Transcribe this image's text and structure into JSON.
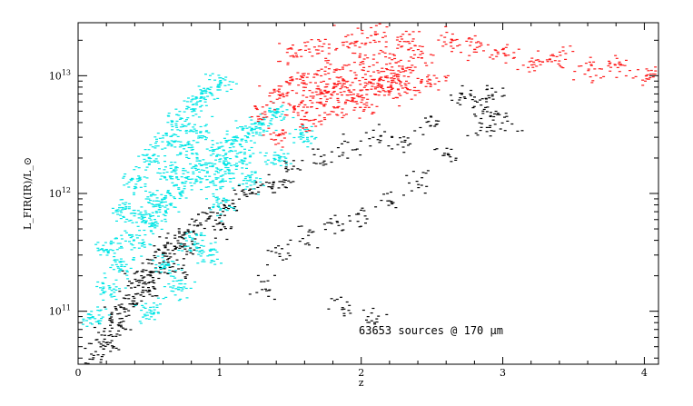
{
  "chart_data": {
    "type": "scatter",
    "xlabel": "z",
    "ylabel": "L_FIR(IR)/L_⊙",
    "xlim": [
      0,
      4.1
    ],
    "ylim_log10": [
      10.55,
      13.45
    ],
    "y_scale": "log",
    "x_ticks": [
      {
        "value": 0,
        "label": "0"
      },
      {
        "value": 1,
        "label": "1"
      },
      {
        "value": 2,
        "label": "2"
      },
      {
        "value": 3,
        "label": "3"
      },
      {
        "value": 4,
        "label": "4"
      }
    ],
    "y_ticks": [
      {
        "log10": 11,
        "base": "10",
        "exp": "11"
      },
      {
        "log10": 12,
        "base": "10",
        "exp": "12"
      },
      {
        "log10": 13,
        "base": "10",
        "exp": "13"
      }
    ],
    "annotation": "63653 sources @ 170 μm",
    "grid": false,
    "legend": "none",
    "series": [
      {
        "color": "#000000",
        "description": "black points: dense band along lower-left, scattered to high z",
        "points": [
          [
            0.1,
            10.6
          ],
          [
            0.15,
            10.75
          ],
          [
            0.2,
            10.85
          ],
          [
            0.25,
            10.95
          ],
          [
            0.3,
            11.0
          ],
          [
            0.35,
            11.1
          ],
          [
            0.4,
            11.15
          ],
          [
            0.45,
            11.25
          ],
          [
            0.5,
            11.3
          ],
          [
            0.55,
            11.4
          ],
          [
            0.6,
            11.45
          ],
          [
            0.65,
            11.55
          ],
          [
            0.7,
            11.6
          ],
          [
            0.75,
            11.65
          ],
          [
            0.8,
            11.7
          ],
          [
            0.9,
            11.8
          ],
          [
            1.0,
            11.85
          ],
          [
            1.1,
            11.95
          ],
          [
            1.2,
            12.0
          ],
          [
            1.3,
            12.05
          ],
          [
            1.4,
            12.1
          ],
          [
            1.5,
            12.2
          ],
          [
            1.7,
            12.3
          ],
          [
            1.9,
            12.4
          ],
          [
            2.1,
            12.5
          ],
          [
            2.3,
            12.45
          ],
          [
            2.5,
            12.6
          ],
          [
            2.7,
            12.8
          ],
          [
            2.8,
            12.75
          ],
          [
            2.9,
            12.7
          ],
          [
            2.95,
            12.85
          ],
          [
            3.0,
            12.6
          ],
          [
            2.85,
            12.55
          ],
          [
            2.6,
            12.35
          ],
          [
            2.4,
            12.1
          ],
          [
            2.2,
            11.95
          ],
          [
            2.0,
            11.8
          ],
          [
            1.8,
            11.75
          ],
          [
            1.6,
            11.65
          ],
          [
            1.4,
            11.5
          ],
          [
            1.3,
            11.2
          ],
          [
            2.05,
            10.95
          ],
          [
            1.85,
            11.05
          ],
          [
            0.3,
            10.9
          ],
          [
            0.5,
            11.2
          ],
          [
            0.7,
            11.35
          ],
          [
            0.4,
            11.3
          ],
          [
            0.6,
            11.5
          ],
          [
            0.8,
            11.55
          ],
          [
            1.0,
            11.7
          ],
          [
            0.2,
            10.7
          ]
        ]
      },
      {
        "color": "#00e5e5",
        "description": "cyan points: dense cloud at low z",
        "points": [
          [
            0.1,
            10.95
          ],
          [
            0.2,
            11.2
          ],
          [
            0.3,
            11.4
          ],
          [
            0.4,
            11.6
          ],
          [
            0.5,
            11.75
          ],
          [
            0.6,
            11.9
          ],
          [
            0.7,
            12.05
          ],
          [
            0.8,
            12.15
          ],
          [
            0.9,
            12.25
          ],
          [
            1.0,
            12.35
          ],
          [
            1.1,
            12.45
          ],
          [
            1.2,
            12.55
          ],
          [
            1.3,
            12.6
          ],
          [
            1.4,
            12.7
          ],
          [
            0.5,
            12.3
          ],
          [
            0.6,
            12.45
          ],
          [
            0.7,
            12.6
          ],
          [
            0.8,
            12.75
          ],
          [
            0.9,
            12.85
          ],
          [
            1.0,
            12.95
          ],
          [
            0.4,
            12.1
          ],
          [
            0.3,
            11.85
          ],
          [
            0.2,
            11.55
          ],
          [
            0.6,
            11.4
          ],
          [
            0.8,
            11.6
          ],
          [
            1.0,
            11.9
          ],
          [
            1.2,
            12.1
          ],
          [
            1.4,
            12.3
          ],
          [
            1.6,
            12.5
          ],
          [
            0.9,
            11.5
          ],
          [
            0.7,
            11.2
          ],
          [
            0.5,
            11.0
          ],
          [
            0.65,
            12.2
          ],
          [
            0.75,
            12.4
          ],
          [
            0.85,
            12.55
          ],
          [
            0.95,
            12.1
          ],
          [
            1.05,
            12.2
          ],
          [
            1.15,
            12.3
          ],
          [
            0.55,
            11.95
          ],
          [
            0.45,
            11.8
          ]
        ]
      },
      {
        "color": "#ff1a1a",
        "description": "red points: cloud at higher z and luminosity",
        "points": [
          [
            1.3,
            12.7
          ],
          [
            1.4,
            12.85
          ],
          [
            1.5,
            12.95
          ],
          [
            1.6,
            13.0
          ],
          [
            1.7,
            12.9
          ],
          [
            1.8,
            13.05
          ],
          [
            1.9,
            12.95
          ],
          [
            2.0,
            13.1
          ],
          [
            2.1,
            13.0
          ],
          [
            2.2,
            13.15
          ],
          [
            2.3,
            13.05
          ],
          [
            2.4,
            13.2
          ],
          [
            2.5,
            12.95
          ],
          [
            1.6,
            12.6
          ],
          [
            1.8,
            12.7
          ],
          [
            2.0,
            12.75
          ],
          [
            2.2,
            12.85
          ],
          [
            1.5,
            13.2
          ],
          [
            1.7,
            13.25
          ],
          [
            1.9,
            13.3
          ],
          [
            2.1,
            13.35
          ],
          [
            2.3,
            13.3
          ],
          [
            2.6,
            13.3
          ],
          [
            2.8,
            13.25
          ],
          [
            3.0,
            13.2
          ],
          [
            3.2,
            13.1
          ],
          [
            3.4,
            13.15
          ],
          [
            3.6,
            13.05
          ],
          [
            3.8,
            13.1
          ],
          [
            4.0,
            13.0
          ],
          [
            1.4,
            12.5
          ],
          [
            1.55,
            12.75
          ],
          [
            1.65,
            12.8
          ],
          [
            1.75,
            12.85
          ],
          [
            1.85,
            12.9
          ],
          [
            1.95,
            12.8
          ],
          [
            2.05,
            12.9
          ],
          [
            2.15,
            12.95
          ],
          [
            2.25,
            13.0
          ],
          [
            2.35,
            12.9
          ]
        ]
      }
    ]
  }
}
